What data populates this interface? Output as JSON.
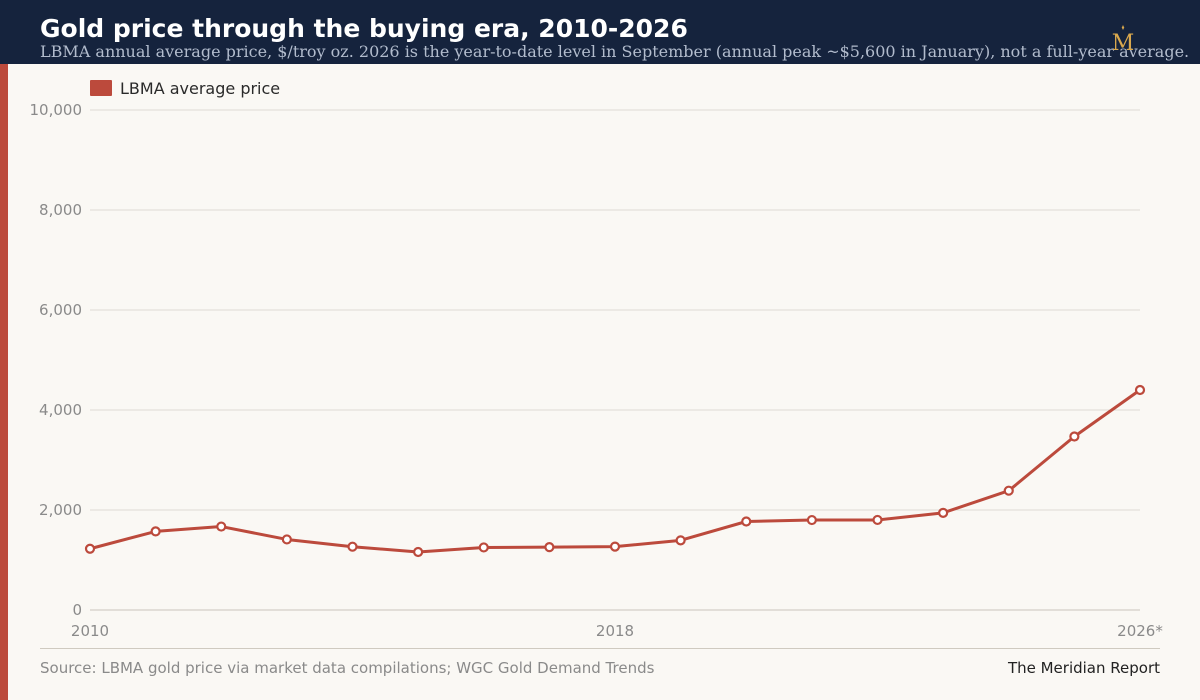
{
  "header": {
    "title": "Gold price through the buying era, 2010-2026",
    "subtitle": "LBMA annual average price, $/troy oz. 2026 is the year-to-date level in September (annual peak ~$5,600 in January), not a full-year average.",
    "logo_letter": "M"
  },
  "colors": {
    "header_bg": "#15233d",
    "accent": "#bc4a3c",
    "background": "#faf8f4",
    "logo_gold": "#d9a84e"
  },
  "chart_data": {
    "type": "line",
    "title": "Gold price through the buying era, 2010-2026",
    "x": [
      2010,
      2011,
      2012,
      2013,
      2014,
      2015,
      2016,
      2017,
      2018,
      2019,
      2020,
      2021,
      2022,
      2023,
      2024,
      2025,
      2026
    ],
    "x_tick_values": [
      2010,
      2018,
      2026
    ],
    "x_tick_labels": [
      "2010",
      "2018",
      "2026*"
    ],
    "xlim": [
      2010,
      2026
    ],
    "ylim": [
      0,
      10000
    ],
    "y_ticks": [
      0,
      2000,
      4000,
      6000,
      8000,
      10000
    ],
    "y_tick_labels": [
      "0",
      "2,000",
      "4,000",
      "6,000",
      "8,000",
      "10,000"
    ],
    "grid": true,
    "legend_position": "top-left",
    "series": [
      {
        "name": "LBMA average price",
        "color": "#bc4a3c",
        "values": [
          1225,
          1572,
          1669,
          1411,
          1266,
          1160,
          1251,
          1257,
          1268,
          1393,
          1770,
          1799,
          1801,
          1943,
          2386,
          3470,
          4400
        ]
      }
    ]
  },
  "footer": {
    "source": "Source: LBMA gold price via market data compilations; WGC Gold Demand Trends",
    "brand": "The Meridian Report"
  }
}
